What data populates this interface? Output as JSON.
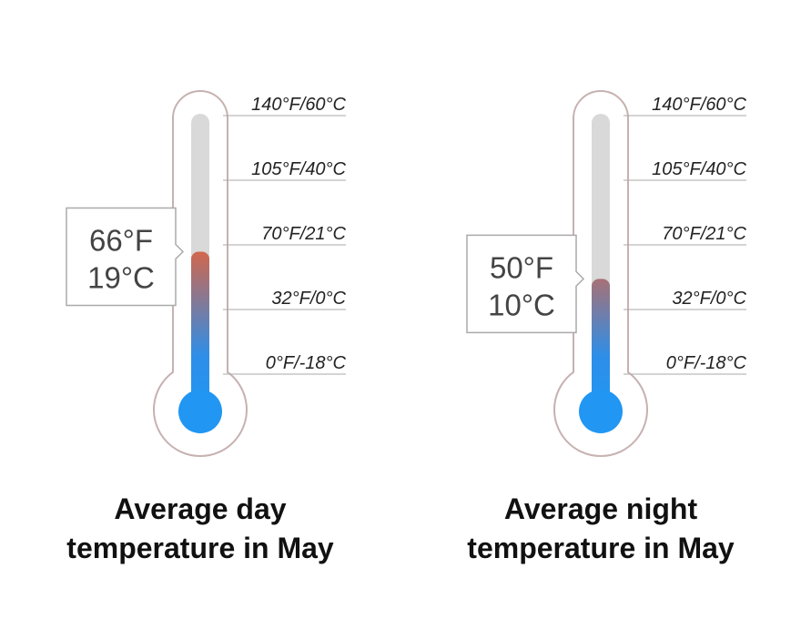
{
  "chart_data": [
    {
      "type": "thermometer",
      "title": "Average day temperature in May",
      "values": [
        66
      ],
      "value_labels": [
        "66°F"
      ],
      "values_c": [
        19
      ],
      "value_labels_c": [
        "19°C"
      ],
      "ylim": [
        0,
        140
      ],
      "yticks": [
        {
          "value": 140,
          "label": "140°F/60°C"
        },
        {
          "value": 105,
          "label": "105°F/40°C"
        },
        {
          "value": 70,
          "label": "70°F/21°C"
        },
        {
          "value": 32,
          "label": "32°F/0°C"
        },
        {
          "value": 0,
          "label": "0°F/-18°C"
        }
      ]
    },
    {
      "type": "thermometer",
      "title": "Average night temperature in May",
      "values": [
        50
      ],
      "value_labels": [
        "50°F"
      ],
      "values_c": [
        10
      ],
      "value_labels_c": [
        "10°C"
      ],
      "ylim": [
        0,
        140
      ],
      "yticks": [
        {
          "value": 140,
          "label": "140°F/60°C"
        },
        {
          "value": 105,
          "label": "105°F/40°C"
        },
        {
          "value": 70,
          "label": "70°F/21°C"
        },
        {
          "value": 32,
          "label": "32°F/0°C"
        },
        {
          "value": 0,
          "label": "0°F/-18°C"
        }
      ]
    }
  ]
}
